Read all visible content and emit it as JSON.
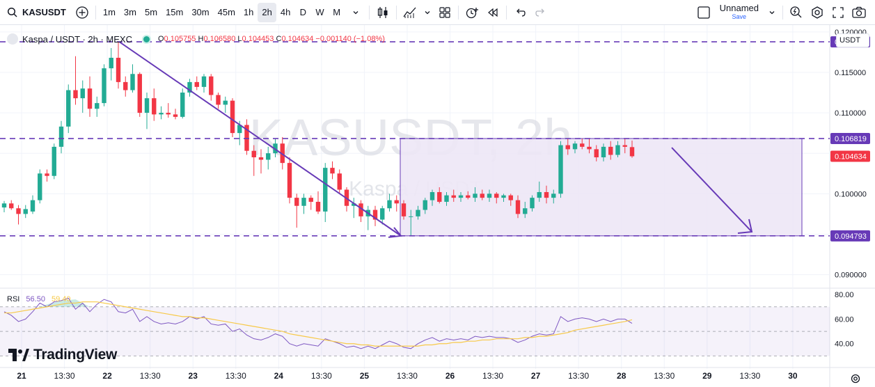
{
  "toolbar": {
    "symbol": "KASUSDT",
    "intervals": [
      "1m",
      "3m",
      "5m",
      "15m",
      "30m",
      "45m",
      "1h",
      "2h",
      "4h",
      "D",
      "W",
      "M"
    ],
    "active_interval": "2h",
    "layout_name": "Unnamed",
    "layout_save": "Save"
  },
  "legend": {
    "title": "Kaspa / USDT · 2h · MEXC",
    "o_label": "O",
    "o": "0.105755",
    "h_label": "H",
    "h": "0.106580",
    "l_label": "L",
    "l": "0.104453",
    "c_label": "C",
    "c": "0.104634",
    "change": "−0.001140 (−1.08%)"
  },
  "watermark": {
    "main": "KASUSDT, 2h",
    "sub": "Kaspa / USDT"
  },
  "currency": "USDT",
  "rsi_legend": {
    "label": "RSI",
    "value": "56.50",
    "ma_value": "59.40"
  },
  "branding": "TradingView",
  "colors": {
    "up": "#22ab94",
    "down": "#f23645",
    "drawing": "#673ab7",
    "rect_fill": "#ede7f6",
    "rsi": "#7e57c2",
    "rsi_ma": "#f7c948"
  },
  "chart_data": {
    "type": "candlestick",
    "x_tick_labels": [
      "21",
      "13:30",
      "22",
      "13:30",
      "23",
      "13:30",
      "24",
      "13:30",
      "25",
      "13:30",
      "26",
      "13:30",
      "27",
      "13:30",
      "28",
      "13:30",
      "29",
      "13:30",
      "30"
    ],
    "x_tick_bold": [
      "21",
      "22",
      "23",
      "24",
      "25",
      "26",
      "27",
      "28",
      "29",
      "30"
    ],
    "y_tick_labels": [
      "0.120000",
      "0.115000",
      "0.110000",
      "0.105000",
      "0.100000",
      "0.095000",
      "0.090000"
    ],
    "y_ticks": [
      0.12,
      0.115,
      0.11,
      0.105,
      0.1,
      0.095,
      0.09
    ],
    "ylim": [
      0.0885,
      0.1205
    ],
    "price_labels": [
      {
        "text": "0.118772",
        "value": 0.118772,
        "color": "#673ab7"
      },
      {
        "text": "0.106819",
        "value": 0.106819,
        "color": "#673ab7"
      },
      {
        "text": "0.104634",
        "value": 0.104634,
        "color": "#f23645"
      },
      {
        "text": "0.094793",
        "value": 0.094793,
        "color": "#673ab7"
      }
    ],
    "horizontal_lines": [
      0.118772,
      0.106819,
      0.094793
    ],
    "candles": [
      [
        0.0983,
        0.0991,
        0.0977,
        0.0988
      ],
      [
        0.0988,
        0.0992,
        0.098,
        0.0982
      ],
      [
        0.0982,
        0.0986,
        0.0962,
        0.0975
      ],
      [
        0.0975,
        0.0986,
        0.097,
        0.0981
      ],
      [
        0.0978,
        0.0998,
        0.0975,
        0.0992
      ],
      [
        0.0992,
        0.103,
        0.0988,
        0.1025
      ],
      [
        0.1025,
        0.103,
        0.1015,
        0.1022
      ],
      [
        0.1022,
        0.1062,
        0.1018,
        0.1058
      ],
      [
        0.1058,
        0.109,
        0.105,
        0.1083
      ],
      [
        0.1083,
        0.1135,
        0.1075,
        0.1128
      ],
      [
        0.1128,
        0.117,
        0.111,
        0.1118
      ],
      [
        0.1118,
        0.114,
        0.11,
        0.113
      ],
      [
        0.113,
        0.1145,
        0.1095,
        0.1105
      ],
      [
        0.1105,
        0.112,
        0.1095,
        0.1112
      ],
      [
        0.1112,
        0.116,
        0.1108,
        0.1155
      ],
      [
        0.1155,
        0.118,
        0.114,
        0.1168
      ],
      [
        0.1168,
        0.1188,
        0.113,
        0.1138
      ],
      [
        0.1138,
        0.1145,
        0.112,
        0.1128
      ],
      [
        0.1128,
        0.116,
        0.1125,
        0.1148
      ],
      [
        0.1148,
        0.115,
        0.1095,
        0.11
      ],
      [
        0.11,
        0.1125,
        0.108,
        0.1118
      ],
      [
        0.1118,
        0.113,
        0.109,
        0.1098
      ],
      [
        0.1098,
        0.1108,
        0.1092,
        0.11
      ],
      [
        0.11,
        0.1112,
        0.1094,
        0.1098
      ],
      [
        0.1098,
        0.1105,
        0.1092,
        0.1095
      ],
      [
        0.1095,
        0.113,
        0.1093,
        0.1125
      ],
      [
        0.1125,
        0.1142,
        0.112,
        0.1138
      ],
      [
        0.1138,
        0.1145,
        0.1128,
        0.1132
      ],
      [
        0.1132,
        0.1148,
        0.1125,
        0.1145
      ],
      [
        0.1145,
        0.1148,
        0.1115,
        0.1122
      ],
      [
        0.1122,
        0.1125,
        0.1105,
        0.111
      ],
      [
        0.111,
        0.112,
        0.11,
        0.1115
      ],
      [
        0.1115,
        0.1118,
        0.107,
        0.1075
      ],
      [
        0.1075,
        0.109,
        0.106,
        0.1085
      ],
      [
        0.1085,
        0.1092,
        0.1048,
        0.1053
      ],
      [
        0.1053,
        0.106,
        0.1022,
        0.1045
      ],
      [
        0.1045,
        0.1055,
        0.1025,
        0.1042
      ],
      [
        0.1042,
        0.1058,
        0.103,
        0.105
      ],
      [
        0.105,
        0.1068,
        0.1045,
        0.1062
      ],
      [
        0.1062,
        0.107,
        0.103,
        0.1038
      ],
      [
        0.1038,
        0.1045,
        0.0988,
        0.0995
      ],
      [
        0.0995,
        0.1,
        0.0958,
        0.0985
      ],
      [
        0.0985,
        0.1,
        0.0975,
        0.0995
      ],
      [
        0.0995,
        0.0998,
        0.098,
        0.099
      ],
      [
        0.099,
        0.1003,
        0.0975,
        0.0978
      ],
      [
        0.0978,
        0.1038,
        0.0965,
        0.1032
      ],
      [
        0.1032,
        0.104,
        0.1018,
        0.1025
      ],
      [
        0.1025,
        0.103,
        0.1,
        0.1005
      ],
      [
        0.1005,
        0.1008,
        0.0978,
        0.0985
      ],
      [
        0.0985,
        0.0995,
        0.097,
        0.0988
      ],
      [
        0.0988,
        0.0992,
        0.0965,
        0.0972
      ],
      [
        0.0972,
        0.0985,
        0.0955,
        0.098
      ],
      [
        0.098,
        0.0985,
        0.096,
        0.0968
      ],
      [
        0.0968,
        0.0985,
        0.0962,
        0.0982
      ],
      [
        0.0982,
        0.1,
        0.0978,
        0.0992
      ],
      [
        0.0992,
        0.0998,
        0.0978,
        0.0988
      ],
      [
        0.0988,
        0.0992,
        0.0968,
        0.0972
      ],
      [
        0.0972,
        0.098,
        0.0948,
        0.0972
      ],
      [
        0.0972,
        0.0985,
        0.0968,
        0.098
      ],
      [
        0.098,
        0.0995,
        0.0975,
        0.0992
      ],
      [
        0.0992,
        0.1005,
        0.0985,
        0.1002
      ],
      [
        0.1002,
        0.1008,
        0.0988,
        0.099
      ],
      [
        0.099,
        0.1002,
        0.0985,
        0.0998
      ],
      [
        0.0998,
        0.1005,
        0.099,
        0.0995
      ],
      [
        0.0995,
        0.1002,
        0.099,
        0.0998
      ],
      [
        0.0998,
        0.1003,
        0.0993,
        0.0995
      ],
      [
        0.0995,
        0.1008,
        0.099,
        0.1
      ],
      [
        0.1,
        0.1005,
        0.0992,
        0.0995
      ],
      [
        0.0995,
        0.1005,
        0.099,
        0.1
      ],
      [
        0.1,
        0.1002,
        0.0988,
        0.0995
      ],
      [
        0.0995,
        0.1,
        0.099,
        0.0998
      ],
      [
        0.0998,
        0.1,
        0.0985,
        0.0992
      ],
      [
        0.0992,
        0.0998,
        0.097,
        0.0975
      ],
      [
        0.0975,
        0.099,
        0.097,
        0.0982
      ],
      [
        0.0982,
        0.0998,
        0.0978,
        0.0995
      ],
      [
        0.0995,
        0.1015,
        0.099,
        0.1002
      ],
      [
        0.1002,
        0.101,
        0.0988,
        0.0995
      ],
      [
        0.0995,
        0.1005,
        0.0988,
        0.1
      ],
      [
        0.1,
        0.1065,
        0.0995,
        0.106
      ],
      [
        0.106,
        0.1068,
        0.1048,
        0.1055
      ],
      [
        0.1055,
        0.1065,
        0.105,
        0.1062
      ],
      [
        0.1062,
        0.1068,
        0.1055,
        0.1058
      ],
      [
        0.1058,
        0.1068,
        0.105,
        0.1055
      ],
      [
        0.1055,
        0.106,
        0.104,
        0.1045
      ],
      [
        0.1045,
        0.1062,
        0.104,
        0.1058
      ],
      [
        0.1058,
        0.1065,
        0.1042,
        0.1048
      ],
      [
        0.1048,
        0.1065,
        0.1045,
        0.106
      ],
      [
        0.106,
        0.1068,
        0.105,
        0.1058
      ],
      [
        0.10576,
        0.10658,
        0.10445,
        0.10463
      ]
    ],
    "rsi_y_ticks": [
      80,
      60,
      40
    ],
    "rsi_y_tick_labels": [
      "80.00",
      "60.00",
      "40.00"
    ],
    "rsi_ylim": [
      24,
      84
    ],
    "rsi_band": [
      30,
      70
    ],
    "rsi": [
      66,
      63,
      58,
      60,
      66,
      73,
      70,
      74,
      75,
      77,
      68,
      73,
      66,
      72,
      76,
      74,
      66,
      65,
      68,
      58,
      62,
      58,
      56,
      57,
      56,
      58,
      62,
      60,
      62,
      56,
      55,
      56,
      50,
      52,
      47,
      44,
      43,
      45,
      48,
      46,
      40,
      38,
      40,
      39,
      38,
      44,
      42,
      40,
      37,
      38,
      36,
      38,
      36,
      39,
      42,
      40,
      37,
      36,
      40,
      43,
      45,
      42,
      44,
      43,
      44,
      43,
      46,
      45,
      46,
      45,
      45,
      44,
      41,
      43,
      46,
      48,
      47,
      48,
      62,
      58,
      60,
      61,
      60,
      58,
      60,
      58,
      60,
      60,
      56.5
    ],
    "rsi_ma": [
      65,
      65,
      66,
      67,
      68,
      69,
      70,
      71,
      72,
      73,
      73,
      74,
      74,
      74,
      73,
      72,
      71,
      70,
      69,
      68,
      67,
      66,
      65,
      64,
      63,
      62,
      62,
      61,
      61,
      60,
      59,
      58,
      57,
      56,
      55,
      54,
      53,
      52,
      51,
      50,
      48,
      47,
      46,
      45,
      44,
      43,
      42,
      41,
      40,
      40,
      39,
      39,
      38,
      38,
      38,
      38,
      38,
      38,
      38,
      39,
      39,
      40,
      40,
      41,
      41,
      42,
      42,
      43,
      43,
      44,
      44,
      44,
      44,
      45,
      45,
      46,
      46,
      47,
      48,
      49,
      51,
      52,
      53,
      54,
      55,
      56,
      57,
      58,
      59.4
    ]
  }
}
